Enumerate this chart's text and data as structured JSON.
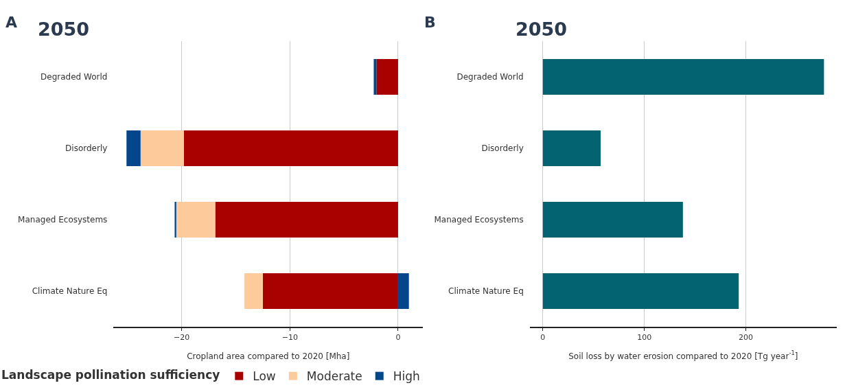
{
  "chart_data": [
    {
      "type": "bar",
      "orientation": "horizontal",
      "stacked": true,
      "title": "2050",
      "annotations": [
        "A"
      ],
      "xlabel": "Cropland area compared to 2020 [Mha]",
      "categories": [
        "Degraded World",
        "Disorderly",
        "Managed Ecosystems",
        "Climate Nature Eq"
      ],
      "series": [
        {
          "name": "Low",
          "color": "#a90000",
          "values": [
            -2.0,
            -19.8,
            -16.9,
            -12.5
          ]
        },
        {
          "name": "Moderate",
          "color": "#fdcb9b",
          "values": [
            0,
            -4.0,
            -3.6,
            -1.7
          ]
        },
        {
          "name": "High",
          "color": "#03468b",
          "values": [
            -0.25,
            -1.3,
            -0.15,
            1.0
          ]
        }
      ],
      "xlim": [
        -26.3,
        2.3
      ],
      "xticks": [
        -20,
        -10,
        0
      ],
      "grid": "x",
      "legend": "bottom",
      "legend_title": "Landscape pollination sufficiency"
    },
    {
      "type": "bar",
      "orientation": "horizontal",
      "title": "2050",
      "annotations": [
        "B"
      ],
      "xlabel": "Soil loss by water erosion compared to 2020 [Tg year$^{-1}$]",
      "categories": [
        "Degraded World",
        "Disorderly",
        "Managed Ecosystems",
        "Climate Nature Eq"
      ],
      "series": [
        {
          "color": "#046370",
          "values": [
            277,
            57,
            138,
            193
          ]
        }
      ],
      "xlim": [
        -12.9,
        289.5
      ],
      "xticks": [
        0,
        100,
        200
      ],
      "grid": "x"
    }
  ]
}
